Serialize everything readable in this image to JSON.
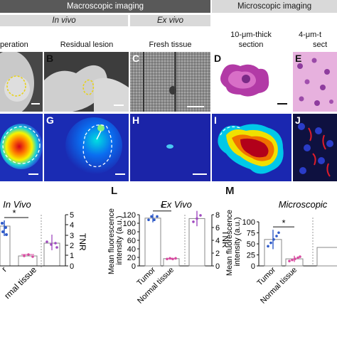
{
  "headers": {
    "macroscopic": "Macroscopic imaging",
    "microscopic": "Microscopic imaging",
    "in_vivo": "In vivo",
    "ex_vivo": "Ex vivo",
    "section_10_line1": "10-μm-thick",
    "section_10_line2": "section",
    "section_4_line1": "4-μm-t",
    "section_4_line2": "sect"
  },
  "columns": {
    "operation": "peration",
    "residual": "Residual lesion",
    "fresh": "Fresh tissue"
  },
  "panel_labels": [
    "B",
    "C",
    "D",
    "E",
    "G",
    "H",
    "I",
    "J",
    "L",
    "M"
  ],
  "chart_in_vivo": {
    "title": "In Vivo",
    "y2label": "TNR",
    "y2ticks": [
      "5",
      "4",
      "3",
      "2",
      "1",
      "0"
    ],
    "xlabel_partial_1": "r",
    "xlabel_partial_2": "rmal tissue",
    "star": "*"
  },
  "chart_data": [
    {
      "type": "bar",
      "title": "Ex Vivo",
      "categories": [
        "Tumor",
        "Normal tissue"
      ],
      "values": [
        112,
        17
      ],
      "errors": [
        10,
        2
      ],
      "ylabel": "Mean fluorescence intensity (a.u.)",
      "ylim": [
        0,
        120
      ],
      "yticks": [
        0,
        20,
        40,
        60,
        80,
        100,
        120
      ],
      "tnr": {
        "ylabel": "TNR",
        "value": 7.4,
        "error": 1.2,
        "ylim": [
          0,
          8
        ],
        "yticks": [
          0,
          2,
          4,
          6,
          8
        ]
      },
      "significance": "*"
    },
    {
      "type": "bar",
      "title": "Microscopic",
      "categories": [
        "Tumor",
        "Normal tissue"
      ],
      "values": [
        60,
        16
      ],
      "errors": [
        22,
        7
      ],
      "ylabel": "Mean fluorescence intensity (a.u.)",
      "ylim": [
        0,
        100
      ],
      "yticks": [
        0,
        25,
        50,
        75,
        100
      ],
      "significance": "*"
    }
  ]
}
